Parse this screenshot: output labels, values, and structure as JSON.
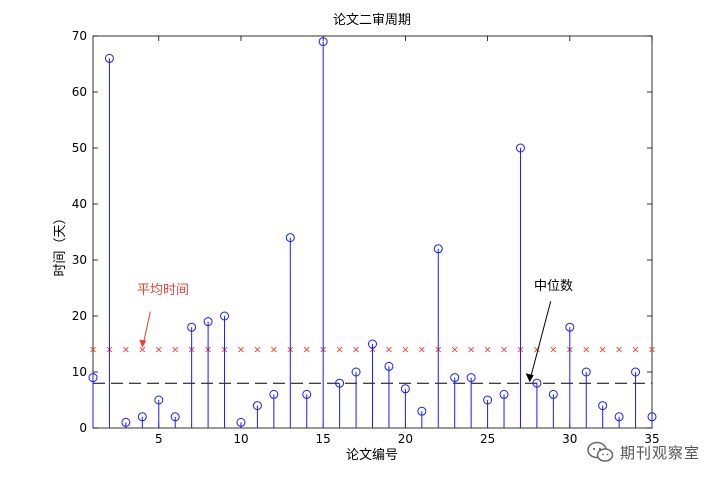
{
  "chart_data": {
    "type": "stem",
    "title": "论文二审周期",
    "xlabel": "论文编号",
    "ylabel": "时间（天）",
    "xlim": [
      1,
      35
    ],
    "ylim": [
      0,
      70
    ],
    "xticks": [
      5,
      10,
      15,
      20,
      25,
      30,
      35
    ],
    "yticks": [
      0,
      10,
      20,
      30,
      40,
      50,
      60,
      70
    ],
    "x": [
      1,
      2,
      3,
      4,
      5,
      6,
      7,
      8,
      9,
      10,
      11,
      12,
      13,
      14,
      15,
      16,
      17,
      18,
      19,
      20,
      21,
      22,
      23,
      24,
      25,
      26,
      27,
      28,
      29,
      30,
      31,
      32,
      33,
      34,
      35
    ],
    "values": [
      9,
      66,
      1,
      2,
      5,
      2,
      18,
      19,
      20,
      1,
      4,
      6,
      34,
      6,
      69,
      8,
      10,
      15,
      11,
      7,
      3,
      32,
      9,
      9,
      5,
      6,
      50,
      8,
      6,
      18,
      10,
      4,
      2,
      10,
      2
    ],
    "mean": 14,
    "median": 8,
    "annotations": [
      {
        "label": "平均时间",
        "x": 4,
        "y": 14,
        "color": "#e8403a"
      },
      {
        "label": "中位数",
        "x": 27.5,
        "y": 8,
        "color": "#000000"
      }
    ],
    "colors": {
      "stem": "#1a1aff",
      "mean_marker": "#e8403a",
      "median_line": "#000000",
      "mean_annotation": "#e8403a"
    }
  },
  "watermark": {
    "text": "期刊观察室",
    "icon": "wechat-icon"
  }
}
